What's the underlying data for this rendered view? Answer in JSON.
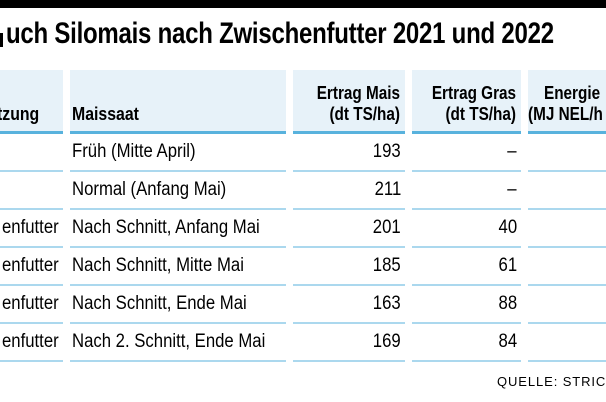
{
  "title": "uch Silomais nach Zwischenfutter 2021 und 2022",
  "source": "QUELLE: STRIC",
  "colors": {
    "top_bar": "#000000",
    "header_bg": "#e7f2f9",
    "header_rule": "#58b2dd",
    "row_rule": "#abd8ee",
    "text": "#000000"
  },
  "chart_data": {
    "type": "table",
    "title": "uch Silomais nach Zwischenfutter 2021 und 2022",
    "columns": [
      {
        "lines": [
          "tzung"
        ]
      },
      {
        "lines": [
          "Maissaat"
        ]
      },
      {
        "lines": [
          "Ertrag Mais",
          "(dt TS/ha)"
        ]
      },
      {
        "lines": [
          "Ertrag Gras",
          "(dt TS/ha)"
        ]
      },
      {
        "lines": [
          "Energie",
          "(MJ NEL/h"
        ]
      }
    ],
    "rows": [
      [
        "",
        "Früh (Mitte April)",
        "193",
        "–",
        ""
      ],
      [
        "",
        "Normal (Anfang Mai)",
        "211",
        "–",
        ""
      ],
      [
        "enfutter",
        "Nach Schnitt, Anfang Mai",
        "201",
        "40",
        ""
      ],
      [
        "enfutter",
        "Nach Schnitt, Mitte Mai",
        "185",
        "61",
        ""
      ],
      [
        "enfutter",
        "Nach Schnitt, Ende Mai",
        "163",
        "88",
        ""
      ],
      [
        "enfutter",
        "Nach 2. Schnitt, Ende Mai",
        "169",
        "84",
        ""
      ]
    ]
  }
}
